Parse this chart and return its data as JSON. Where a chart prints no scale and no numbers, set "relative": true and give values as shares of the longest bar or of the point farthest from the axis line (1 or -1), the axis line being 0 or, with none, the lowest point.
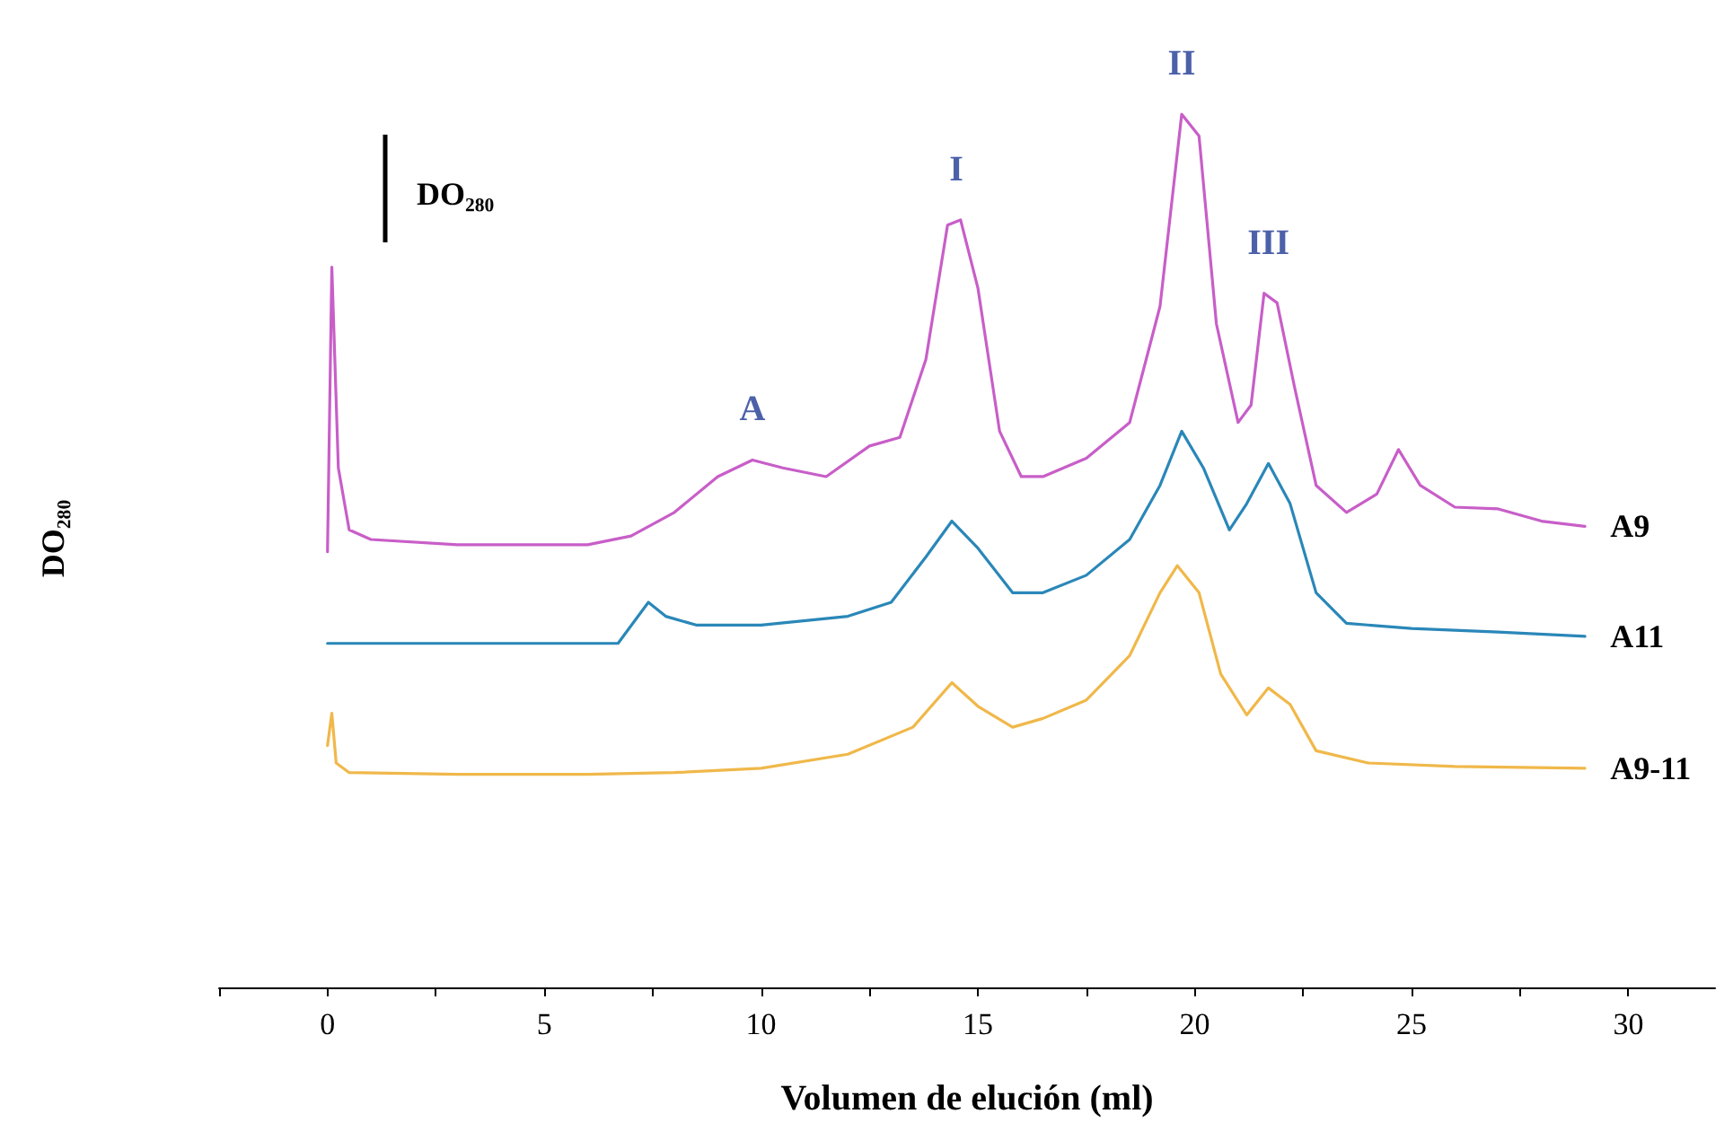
{
  "chart_data": {
    "type": "line",
    "relative": true,
    "xlabel": "Volumen de elución (ml)",
    "ylabel": "DO₂₈₀",
    "xlim": [
      -2.5,
      32
    ],
    "xticks": [
      {
        "value": -2.5,
        "label": null
      },
      0,
      {
        "value": 2.5,
        "label": null
      },
      5,
      {
        "value": 7.5,
        "label": null
      },
      10,
      {
        "value": 12.5,
        "label": null
      },
      15,
      {
        "value": 17.5,
        "label": null
      },
      20,
      {
        "value": 22.5,
        "label": null
      },
      25,
      {
        "value": 27.5,
        "label": null
      },
      30
    ],
    "tick_labels": "x",
    "marker": "none",
    "line_style": "solid",
    "annotations": [
      "DO₂₈₀",
      {
        "text": "A",
        "x": 9.8,
        "y": 0.604
      },
      {
        "text": "I",
        "x": 14.5,
        "y": 0.879
      },
      {
        "text": "II",
        "x": 19.7,
        "y": 1.0
      },
      {
        "text": "III",
        "x": 21.7,
        "y": 0.795
      }
    ],
    "series": [
      {
        "name": "A9",
        "color": "#c85ec8",
        "x": [
          0,
          0.1,
          0.25,
          0.5,
          1,
          3,
          6,
          7,
          8,
          9,
          9.8,
          10.5,
          11.5,
          12.5,
          13.2,
          13.8,
          14.3,
          14.6,
          15,
          15.5,
          16,
          16.5,
          17.5,
          18.5,
          19.2,
          19.7,
          20.1,
          20.5,
          21,
          21.3,
          21.6,
          21.9,
          22.3,
          22.8,
          23.5,
          24.2,
          24.7,
          25.2,
          26,
          27,
          28,
          29
        ],
        "values": [
          0.499,
          0.825,
          0.595,
          0.524,
          0.513,
          0.507,
          0.507,
          0.517,
          0.544,
          0.585,
          0.604,
          0.595,
          0.585,
          0.62,
          0.63,
          0.719,
          0.873,
          0.879,
          0.801,
          0.637,
          0.585,
          0.585,
          0.606,
          0.647,
          0.78,
          1.0,
          0.975,
          0.76,
          0.647,
          0.667,
          0.795,
          0.784,
          0.688,
          0.575,
          0.544,
          0.565,
          0.616,
          0.575,
          0.55,
          0.548,
          0.534,
          0.528
        ]
      },
      {
        "name": "A11",
        "color": "#2a87b8",
        "x": [
          0,
          3,
          6.7,
          7.4,
          7.8,
          8.5,
          10,
          12,
          13,
          13.8,
          14.4,
          15,
          15.8,
          16.5,
          17.5,
          18.5,
          19.2,
          19.7,
          20.2,
          20.8,
          21.2,
          21.7,
          22.2,
          22.8,
          23.5,
          25,
          27,
          29
        ],
        "values": [
          0.394,
          0.394,
          0.394,
          0.441,
          0.425,
          0.415,
          0.415,
          0.425,
          0.441,
          0.493,
          0.534,
          0.503,
          0.452,
          0.452,
          0.472,
          0.513,
          0.575,
          0.637,
          0.595,
          0.524,
          0.554,
          0.6,
          0.554,
          0.452,
          0.417,
          0.411,
          0.407,
          0.402
        ]
      },
      {
        "name": "A9-11",
        "color": "#f0b84a",
        "x": [
          0,
          0.1,
          0.2,
          0.5,
          3,
          6,
          8,
          10,
          12,
          13.5,
          14.4,
          15,
          15.8,
          16.5,
          17.5,
          18.5,
          19.2,
          19.6,
          20.1,
          20.6,
          21.2,
          21.7,
          22.2,
          22.8,
          24,
          26,
          29
        ],
        "values": [
          0.277,
          0.314,
          0.257,
          0.246,
          0.244,
          0.244,
          0.246,
          0.251,
          0.267,
          0.298,
          0.349,
          0.322,
          0.298,
          0.308,
          0.329,
          0.38,
          0.452,
          0.483,
          0.452,
          0.359,
          0.312,
          0.343,
          0.324,
          0.271,
          0.257,
          0.253,
          0.251
        ]
      }
    ]
  }
}
